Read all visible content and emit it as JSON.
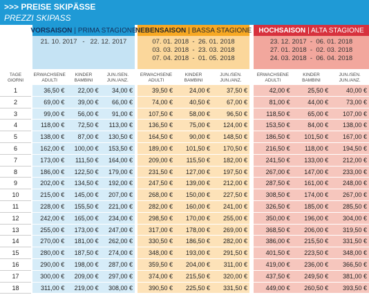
{
  "header": {
    "title": ">>> PREISE SKIPÄSSE",
    "subtitle": "PREZZI SKIPASS"
  },
  "seasons": [
    {
      "name": "VORSAISON",
      "name_it": "| PRIMA STAGIONE",
      "dates": [
        "21. 10. 2017   -   22. 12. 2017"
      ],
      "columns": [
        [
          "ERWACHSENE",
          "ADULTI"
        ],
        [
          "KINDER",
          "BAMBINI"
        ],
        [
          "JUN./SEN.",
          "JUN./ANZ."
        ]
      ]
    },
    {
      "name": "NEBENSAISON",
      "name_it": "| BASSA STAGIONE",
      "dates": [
        "07. 01. 2018  -  26. 01. 2018",
        "03. 03. 2018  -  23. 03. 2018",
        "07. 04. 2018  -  01. 05. 2018"
      ],
      "columns": [
        [
          "ERWACHSENE",
          "ADULTI"
        ],
        [
          "KINDER",
          "BAMBINI"
        ],
        [
          "JUN./SEN.",
          "JUN./ANZ."
        ]
      ]
    },
    {
      "name": "HOCHSAISON",
      "name_it": "| ALTA STAGIONE",
      "dates": [
        "23. 12. 2017  -  06. 01. 2018",
        "27. 01. 2018  -  02. 03. 2018",
        "24. 03. 2018  -  06. 04. 2018"
      ],
      "columns": [
        [
          "ERWACHSENE",
          "ADULTI"
        ],
        [
          "KINDER",
          "BAMBINI"
        ],
        [
          "JUN./SEN.",
          "JUN./ANZ."
        ]
      ]
    }
  ],
  "table": {
    "day_header": [
      "TAGE",
      "GIORNI"
    ],
    "rows": [
      [
        "1",
        "36,50 €",
        "22,00 €",
        "34,00 €",
        "39,50 €",
        "24,00 €",
        "37,50 €",
        "42,00 €",
        "25,50 €",
        "40,00 €"
      ],
      [
        "2",
        "69,00 €",
        "39,00 €",
        "66,00 €",
        "74,00 €",
        "40,50 €",
        "67,00 €",
        "81,00 €",
        "44,00 €",
        "73,00 €"
      ],
      [
        "3",
        "99,00 €",
        "56,00 €",
        "91,00 €",
        "107,50 €",
        "58,00 €",
        "96,50 €",
        "118,50 €",
        "65,00 €",
        "107,00 €"
      ],
      [
        "4",
        "118,00 €",
        "72,50 €",
        "113,00 €",
        "136,50 €",
        "75,00 €",
        "124,00 €",
        "153,50 €",
        "84,00 €",
        "138,00 €"
      ],
      [
        "5",
        "138,00 €",
        "87,00 €",
        "130,50 €",
        "164,50 €",
        "90,00 €",
        "148,50 €",
        "186,50 €",
        "101,50 €",
        "167,00 €"
      ],
      [
        "6",
        "162,00 €",
        "100,00 €",
        "153,50 €",
        "189,00 €",
        "101,50 €",
        "170,50 €",
        "216,50 €",
        "118,00 €",
        "194,50 €"
      ],
      [
        "7",
        "173,00 €",
        "111,50 €",
        "164,00 €",
        "209,00 €",
        "115,50 €",
        "182,00 €",
        "241,50 €",
        "133,00 €",
        "212,00 €"
      ],
      [
        "8",
        "186,00 €",
        "122,50 €",
        "179,00 €",
        "231,50 €",
        "127,00 €",
        "197,50 €",
        "267,00 €",
        "147,00 €",
        "233,00 €"
      ],
      [
        "9",
        "202,00 €",
        "134,50 €",
        "192,00 €",
        "247,50 €",
        "139,00 €",
        "212,00 €",
        "287,50 €",
        "161,00 €",
        "248,00 €"
      ],
      [
        "10",
        "215,00 €",
        "145,00 €",
        "207,00 €",
        "268,00 €",
        "150,00 €",
        "227,50 €",
        "308,50 €",
        "174,00 €",
        "267,00 €"
      ],
      [
        "11",
        "228,00 €",
        "155,50 €",
        "221,00 €",
        "282,00 €",
        "160,00 €",
        "241,00 €",
        "326,50 €",
        "185,00 €",
        "285,50 €"
      ],
      [
        "12",
        "242,00 €",
        "165,00 €",
        "234,00 €",
        "298,50 €",
        "170,00 €",
        "255,00 €",
        "350,00 €",
        "196,00 €",
        "304,00 €"
      ],
      [
        "13",
        "255,00 €",
        "173,00 €",
        "247,00 €",
        "317,00 €",
        "178,00 €",
        "269,00 €",
        "368,50 €",
        "206,00 €",
        "319,50 €"
      ],
      [
        "14",
        "270,00 €",
        "181,00 €",
        "262,00 €",
        "330,50 €",
        "186,50 €",
        "282,00 €",
        "386,00 €",
        "215,50 €",
        "331,50 €"
      ],
      [
        "15",
        "280,00 €",
        "187,50 €",
        "274,00 €",
        "348,00 €",
        "193,00 €",
        "291,50 €",
        "401,50 €",
        "223,50 €",
        "348,00 €"
      ],
      [
        "16",
        "290,00 €",
        "198,00 €",
        "287,00 €",
        "359,50 €",
        "204,00 €",
        "311,00 €",
        "419,00 €",
        "236,00 €",
        "366,50 €"
      ],
      [
        "17",
        "300,00 €",
        "209,00 €",
        "297,00 €",
        "374,00 €",
        "215,50 €",
        "320,00 €",
        "437,50 €",
        "249,50 €",
        "381,00 €"
      ],
      [
        "18",
        "311,00 €",
        "219,00 €",
        "308,00 €",
        "390,50 €",
        "225,50 €",
        "331,50 €",
        "449,00 €",
        "260,50 €",
        "393,50 €"
      ]
    ]
  }
}
